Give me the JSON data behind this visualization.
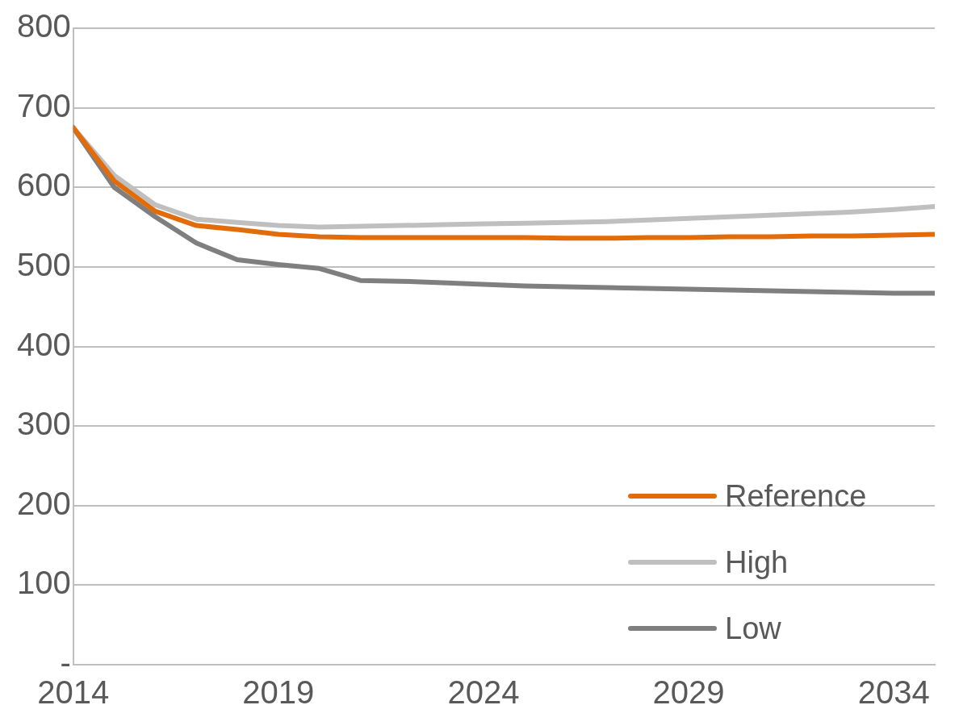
{
  "chart_data": {
    "type": "line",
    "x": [
      2014,
      2015,
      2016,
      2017,
      2018,
      2019,
      2020,
      2021,
      2022,
      2023,
      2024,
      2025,
      2026,
      2027,
      2028,
      2029,
      2030,
      2031,
      2032,
      2033,
      2034,
      2035
    ],
    "series": [
      {
        "name": "Reference",
        "color": "#e36c0a",
        "values": [
          675,
          608,
          570,
          552,
          547,
          541,
          538,
          537,
          537,
          537,
          537,
          537,
          536,
          536,
          537,
          537,
          538,
          538,
          539,
          539,
          540,
          541
        ]
      },
      {
        "name": "High",
        "color": "#bfbfbf",
        "values": [
          675,
          615,
          578,
          560,
          556,
          552,
          550,
          551,
          552,
          553,
          554,
          555,
          556,
          557,
          559,
          561,
          563,
          565,
          567,
          569,
          572,
          576
        ]
      },
      {
        "name": "Low",
        "color": "#7f7f7f",
        "values": [
          675,
          600,
          563,
          530,
          509,
          503,
          498,
          483,
          482,
          480,
          478,
          476,
          475,
          474,
          473,
          472,
          471,
          470,
          469,
          468,
          467,
          467
        ]
      }
    ],
    "xlim": [
      2014,
      2035
    ],
    "xticks": [
      2014,
      2019,
      2024,
      2029,
      2034
    ],
    "ylim": [
      0,
      800
    ],
    "yticks": [
      {
        "value": 0,
        "label": "-"
      },
      100,
      200,
      300,
      400,
      500,
      600,
      700,
      800
    ],
    "grid": "y",
    "legend": "bottom right",
    "marker": "none",
    "line_style": "solid"
  }
}
